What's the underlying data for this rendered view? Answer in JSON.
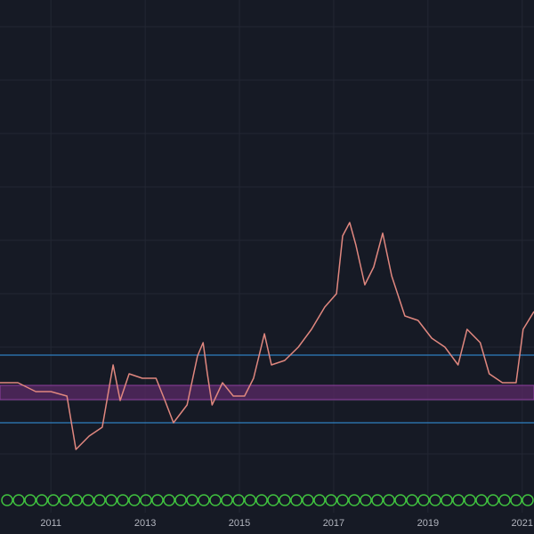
{
  "chart_data": {
    "type": "line",
    "x": [
      2009.92,
      2010.3,
      2010.68,
      2011.0,
      2011.34,
      2011.53,
      2011.81,
      2012.09,
      2012.32,
      2012.47,
      2012.66,
      2012.94,
      2013.23,
      2013.42,
      2013.6,
      2013.89,
      2014.11,
      2014.23,
      2014.32,
      2014.42,
      2014.64,
      2014.87,
      2015.11,
      2015.3,
      2015.53,
      2015.68,
      2015.96,
      2016.25,
      2016.53,
      2016.81,
      2017.06,
      2017.19,
      2017.34,
      2017.47,
      2017.66,
      2017.85,
      2018.04,
      2018.23,
      2018.51,
      2018.79,
      2019.08,
      2019.36,
      2019.64,
      2019.83,
      2020.11,
      2020.3,
      2020.58,
      2020.87,
      2021.02,
      2021.25
    ],
    "values": [
      170,
      170,
      160,
      160,
      155,
      95,
      110,
      120,
      190,
      150,
      180,
      175,
      175,
      150,
      125,
      145,
      200,
      215,
      180,
      145,
      170,
      155,
      155,
      175,
      225,
      190,
      195,
      210,
      230,
      255,
      270,
      335,
      350,
      325,
      280,
      300,
      338,
      290,
      245,
      240,
      220,
      210,
      190,
      230,
      215,
      180,
      170,
      170,
      230,
      250
    ],
    "color": "#e0877f",
    "xlim": [
      2009.92,
      2021.25
    ],
    "ylim": [
      60,
      600
    ],
    "xticks": [
      2011,
      2013,
      2015,
      2017,
      2019,
      2021
    ],
    "hlines": [
      201,
      125
    ],
    "hline_color": "#2f7fc1",
    "zone": [
      151,
      167
    ],
    "zone_color": "#5a2a66",
    "grid": true
  }
}
